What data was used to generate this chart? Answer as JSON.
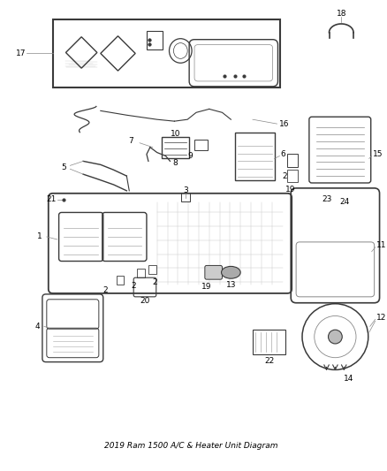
{
  "title": "2019 Ram 1500 A/C & Heater Unit Diagram",
  "bg_color": "#ffffff",
  "fig_width": 4.38,
  "fig_height": 5.33,
  "dpi": 100,
  "lc": "#3a3a3a",
  "tc": "#000000",
  "glc": "#999999"
}
